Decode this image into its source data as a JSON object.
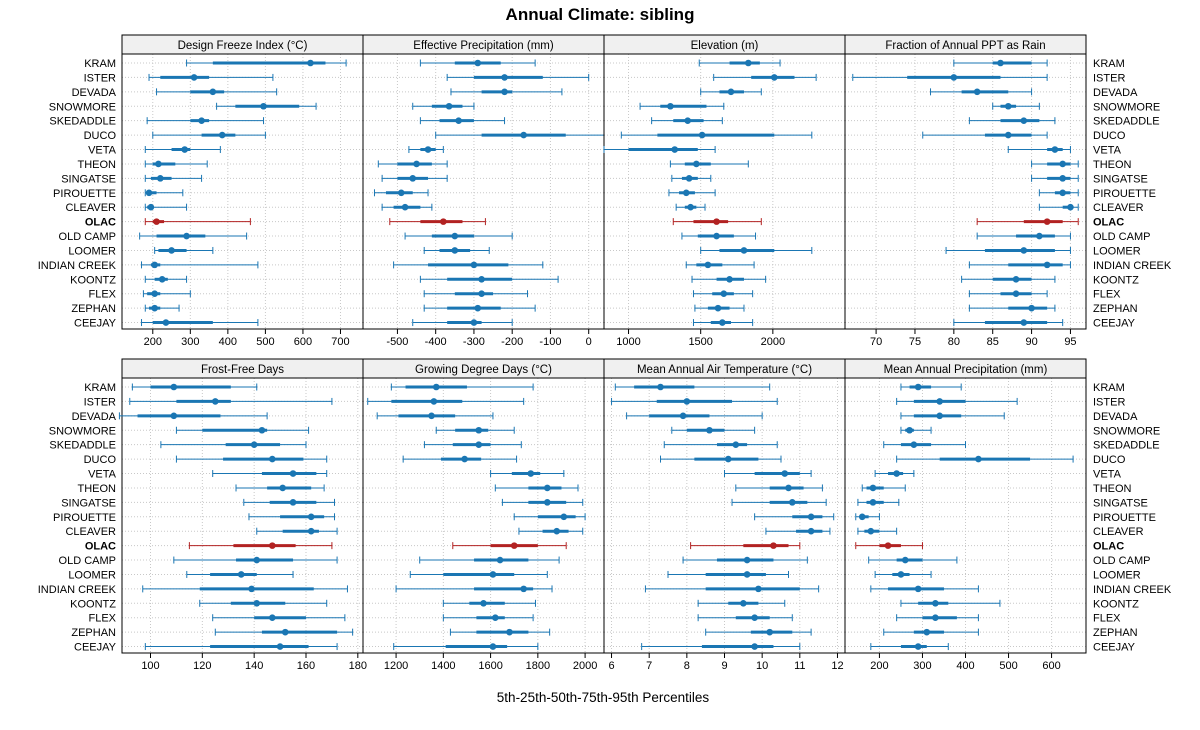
{
  "chart_data": {
    "type": "interval",
    "title": "Annual Climate: sibling",
    "xlabel": "5th-25th-50th-75th-95th Percentiles",
    "highlight_site": "OLAC",
    "colors": {
      "normal": "#1a76b3",
      "highlight": "#b22222",
      "strip": "#f0f0f0",
      "grid": "#c8c8c8"
    },
    "sites": [
      "KRAM",
      "ISTER",
      "DEVADA",
      "SNOWMORE",
      "SKEDADDLE",
      "DUCO",
      "VETA",
      "THEON",
      "SINGATSE",
      "PIROUETTE",
      "CLEAVER",
      "OLAC",
      "OLD CAMP",
      "LOOMER",
      "INDIAN CREEK",
      "KOONTZ",
      "FLEX",
      "ZEPHAN",
      "CEEJAY"
    ],
    "panels": [
      {
        "title": "Design Freeze Index (°C)",
        "xlim": [
          118,
          760
        ],
        "ticks": [
          200,
          300,
          400,
          500,
          600,
          700
        ],
        "data": [
          [
            290,
            360,
            620,
            660,
            715
          ],
          [
            190,
            220,
            310,
            350,
            520
          ],
          [
            210,
            300,
            360,
            390,
            530
          ],
          [
            370,
            420,
            495,
            590,
            635
          ],
          [
            185,
            300,
            330,
            350,
            495
          ],
          [
            200,
            330,
            385,
            420,
            500
          ],
          [
            180,
            250,
            285,
            300,
            380
          ],
          [
            180,
            200,
            215,
            260,
            345
          ],
          [
            180,
            195,
            220,
            250,
            330
          ],
          [
            180,
            185,
            190,
            210,
            280
          ],
          [
            180,
            185,
            195,
            200,
            290
          ],
          [
            180,
            200,
            210,
            230,
            460
          ],
          [
            165,
            210,
            290,
            340,
            450
          ],
          [
            205,
            215,
            250,
            290,
            360
          ],
          [
            170,
            195,
            205,
            220,
            480
          ],
          [
            180,
            205,
            225,
            240,
            290
          ],
          [
            175,
            185,
            205,
            220,
            300
          ],
          [
            180,
            190,
            205,
            220,
            270
          ],
          [
            170,
            200,
            235,
            360,
            480
          ]
        ]
      },
      {
        "title": "Effective Precipitation (mm)",
        "xlim": [
          -590,
          40
        ],
        "ticks": [
          -500,
          -400,
          -300,
          -200,
          -100,
          0
        ],
        "data": [
          [
            -440,
            -350,
            -290,
            -230,
            -140
          ],
          [
            -370,
            -300,
            -220,
            -120,
            0
          ],
          [
            -360,
            -280,
            -220,
            -200,
            -70
          ],
          [
            -460,
            -410,
            -365,
            -330,
            -300
          ],
          [
            -440,
            -390,
            -340,
            -300,
            -220
          ],
          [
            -400,
            -280,
            -170,
            -60,
            40
          ],
          [
            -470,
            -440,
            -420,
            -400,
            -380
          ],
          [
            -550,
            -500,
            -450,
            -410,
            -370
          ],
          [
            -540,
            -500,
            -460,
            -420,
            -370
          ],
          [
            -560,
            -530,
            -490,
            -460,
            -420
          ],
          [
            -540,
            -510,
            -480,
            -440,
            -410
          ],
          [
            -520,
            -440,
            -380,
            -330,
            -270
          ],
          [
            -480,
            -410,
            -350,
            -300,
            -200
          ],
          [
            -430,
            -390,
            -350,
            -310,
            -260
          ],
          [
            -510,
            -420,
            -300,
            -210,
            -120
          ],
          [
            -440,
            -370,
            -280,
            -200,
            -80
          ],
          [
            -430,
            -350,
            -280,
            -250,
            -160
          ],
          [
            -430,
            -370,
            -290,
            -230,
            -140
          ],
          [
            -460,
            -370,
            -300,
            -280,
            -200
          ]
        ]
      },
      {
        "title": "Elevation (m)",
        "xlim": [
          830,
          2500
        ],
        "ticks": [
          1000,
          1500,
          2000
        ],
        "data": [
          [
            1490,
            1700,
            1830,
            1910,
            2050
          ],
          [
            1590,
            1850,
            2010,
            2150,
            2300
          ],
          [
            1500,
            1630,
            1710,
            1800,
            1920
          ],
          [
            1080,
            1220,
            1290,
            1540,
            1660
          ],
          [
            1160,
            1310,
            1410,
            1520,
            1650
          ],
          [
            950,
            1200,
            1510,
            2010,
            2270
          ],
          [
            830,
            1000,
            1320,
            1480,
            1600
          ],
          [
            1290,
            1390,
            1470,
            1570,
            1830
          ],
          [
            1300,
            1370,
            1420,
            1480,
            1570
          ],
          [
            1280,
            1350,
            1400,
            1460,
            1600
          ],
          [
            1330,
            1390,
            1430,
            1470,
            1530
          ],
          [
            1310,
            1450,
            1610,
            1690,
            1920
          ],
          [
            1370,
            1480,
            1610,
            1730,
            1880
          ],
          [
            1500,
            1630,
            1800,
            2010,
            2270
          ],
          [
            1400,
            1470,
            1550,
            1650,
            1870
          ],
          [
            1440,
            1610,
            1700,
            1800,
            1950
          ],
          [
            1450,
            1580,
            1660,
            1730,
            1860
          ],
          [
            1460,
            1550,
            1620,
            1700,
            1800
          ],
          [
            1450,
            1570,
            1650,
            1710,
            1860
          ]
        ]
      },
      {
        "title": "Fraction of Annual PPT as Rain",
        "xlim": [
          66,
          97
        ],
        "ticks": [
          70,
          75,
          80,
          85,
          90,
          95
        ],
        "data": [
          [
            80,
            85,
            86,
            90,
            92
          ],
          [
            67,
            74,
            80,
            86,
            92
          ],
          [
            77,
            81,
            83,
            87,
            90
          ],
          [
            85,
            86,
            87,
            88,
            91
          ],
          [
            82,
            86,
            89,
            91,
            93
          ],
          [
            76,
            84,
            87,
            90,
            92
          ],
          [
            87,
            92,
            93,
            94,
            95
          ],
          [
            90,
            92,
            94,
            95,
            96
          ],
          [
            90,
            92,
            94,
            95,
            96
          ],
          [
            91,
            93,
            94,
            95,
            96
          ],
          [
            91,
            94,
            95,
            95,
            96
          ],
          [
            83,
            89,
            92,
            94,
            96
          ],
          [
            83,
            88,
            91,
            93,
            95
          ],
          [
            79,
            84,
            89,
            93,
            95
          ],
          [
            82,
            87,
            92,
            94,
            95
          ],
          [
            81,
            85,
            88,
            90,
            93
          ],
          [
            82,
            86,
            88,
            90,
            92
          ],
          [
            82,
            87,
            90,
            92,
            93
          ],
          [
            80,
            84,
            89,
            92,
            94
          ]
        ]
      },
      {
        "title": "Frost-Free Days",
        "xlim": [
          89,
          182
        ],
        "ticks": [
          100,
          120,
          140,
          160,
          180
        ],
        "data": [
          [
            93,
            100,
            109,
            131,
            141
          ],
          [
            92,
            110,
            125,
            131,
            170
          ],
          [
            88,
            95,
            109,
            127,
            145
          ],
          [
            110,
            120,
            143,
            145,
            161
          ],
          [
            104,
            129,
            140,
            150,
            160
          ],
          [
            110,
            128,
            147,
            159,
            168
          ],
          [
            124,
            143,
            155,
            164,
            168
          ],
          [
            133,
            145,
            151,
            162,
            167
          ],
          [
            136,
            146,
            155,
            164,
            171
          ],
          [
            138,
            150,
            162,
            167,
            171
          ],
          [
            141,
            151,
            162,
            165,
            172
          ],
          [
            115,
            132,
            147,
            156,
            170
          ],
          [
            109,
            133,
            141,
            155,
            172
          ],
          [
            114,
            123,
            135,
            141,
            155
          ],
          [
            97,
            119,
            139,
            163,
            176
          ],
          [
            119,
            131,
            141,
            152,
            168
          ],
          [
            124,
            140,
            147,
            160,
            175
          ],
          [
            125,
            143,
            152,
            172,
            178
          ],
          [
            98,
            123,
            150,
            161,
            172
          ]
        ]
      },
      {
        "title": "Growing Degree Days (°C)",
        "xlim": [
          1060,
          2080
        ],
        "ticks": [
          1200,
          1400,
          1600,
          1800,
          2000
        ],
        "data": [
          [
            1180,
            1240,
            1370,
            1500,
            1780
          ],
          [
            1080,
            1180,
            1360,
            1480,
            1740
          ],
          [
            1120,
            1210,
            1350,
            1450,
            1610
          ],
          [
            1370,
            1450,
            1550,
            1590,
            1700
          ],
          [
            1320,
            1440,
            1550,
            1600,
            1730
          ],
          [
            1230,
            1390,
            1490,
            1560,
            1710
          ],
          [
            1600,
            1690,
            1770,
            1810,
            1910
          ],
          [
            1620,
            1760,
            1840,
            1900,
            1970
          ],
          [
            1650,
            1760,
            1840,
            1920,
            1990
          ],
          [
            1700,
            1800,
            1910,
            1960,
            2000
          ],
          [
            1720,
            1820,
            1880,
            1930,
            1990
          ],
          [
            1440,
            1600,
            1700,
            1800,
            1920
          ],
          [
            1300,
            1530,
            1640,
            1760,
            1890
          ],
          [
            1260,
            1400,
            1610,
            1700,
            1840
          ],
          [
            1200,
            1530,
            1740,
            1780,
            1860
          ],
          [
            1400,
            1510,
            1570,
            1660,
            1790
          ],
          [
            1400,
            1540,
            1620,
            1660,
            1780
          ],
          [
            1430,
            1540,
            1680,
            1760,
            1850
          ],
          [
            1190,
            1410,
            1610,
            1670,
            1800
          ]
        ]
      },
      {
        "title": "Mean Annual Air Temperature (°C)",
        "xlim": [
          5.8,
          12.2
        ],
        "ticks": [
          6,
          7,
          8,
          9,
          10,
          11,
          12
        ],
        "data": [
          [
            6.1,
            6.6,
            7.3,
            8.2,
            10.2
          ],
          [
            6.0,
            7.2,
            8.0,
            9.2,
            10.4
          ],
          [
            6.4,
            7.0,
            7.9,
            8.6,
            10.0
          ],
          [
            7.6,
            8.0,
            8.6,
            9.0,
            9.8
          ],
          [
            7.4,
            8.8,
            9.3,
            9.6,
            10.4
          ],
          [
            7.3,
            8.2,
            9.1,
            9.9,
            10.5
          ],
          [
            9.0,
            9.8,
            10.6,
            11.0,
            11.3
          ],
          [
            9.3,
            10.2,
            10.7,
            11.1,
            11.6
          ],
          [
            9.2,
            10.2,
            10.8,
            11.2,
            11.7
          ],
          [
            9.8,
            10.8,
            11.3,
            11.6,
            11.9
          ],
          [
            10.1,
            10.9,
            11.3,
            11.6,
            11.8
          ],
          [
            8.1,
            9.5,
            10.3,
            10.7,
            11.0
          ],
          [
            7.9,
            8.8,
            9.6,
            10.3,
            11.2
          ],
          [
            7.5,
            8.5,
            9.6,
            10.1,
            10.7
          ],
          [
            6.9,
            8.5,
            9.9,
            11.0,
            11.5
          ],
          [
            8.3,
            9.1,
            9.5,
            9.9,
            10.6
          ],
          [
            8.3,
            9.3,
            9.8,
            10.2,
            10.8
          ],
          [
            8.5,
            9.7,
            10.2,
            10.8,
            11.3
          ],
          [
            6.8,
            8.4,
            9.8,
            10.3,
            11.0
          ]
        ]
      },
      {
        "title": "Mean Annual Precipitation (mm)",
        "xlim": [
          120,
          680
        ],
        "ticks": [
          200,
          300,
          400,
          500,
          600
        ],
        "data": [
          [
            250,
            270,
            290,
            320,
            390
          ],
          [
            240,
            280,
            340,
            400,
            520
          ],
          [
            250,
            280,
            340,
            390,
            490
          ],
          [
            250,
            260,
            270,
            280,
            320
          ],
          [
            210,
            250,
            280,
            320,
            400
          ],
          [
            240,
            340,
            430,
            550,
            650
          ],
          [
            190,
            220,
            240,
            255,
            280
          ],
          [
            160,
            170,
            185,
            210,
            260
          ],
          [
            150,
            170,
            185,
            210,
            245
          ],
          [
            145,
            155,
            160,
            175,
            200
          ],
          [
            150,
            165,
            180,
            200,
            240
          ],
          [
            145,
            200,
            220,
            250,
            300
          ],
          [
            175,
            240,
            260,
            300,
            380
          ],
          [
            190,
            230,
            250,
            270,
            320
          ],
          [
            180,
            220,
            290,
            350,
            430
          ],
          [
            250,
            290,
            330,
            360,
            480
          ],
          [
            240,
            300,
            330,
            380,
            430
          ],
          [
            210,
            280,
            310,
            350,
            430
          ],
          [
            180,
            250,
            290,
            310,
            360
          ]
        ]
      }
    ]
  }
}
